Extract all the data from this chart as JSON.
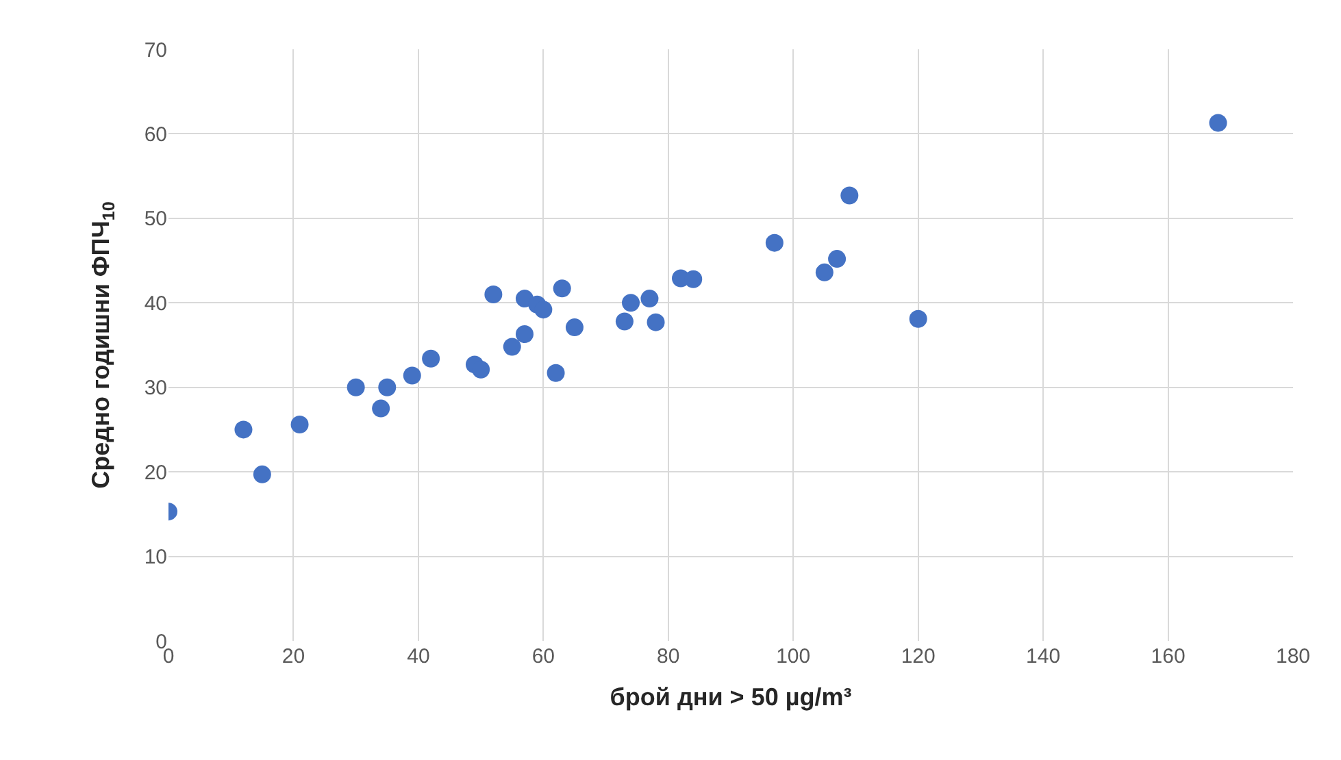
{
  "chart_data": {
    "type": "scatter",
    "xlabel": "брой дни > 50 µg/m³",
    "ylabel": "Средно годишни ФПЧ$_{10}$",
    "x": [
      0,
      12,
      15,
      21,
      30,
      34,
      35,
      39,
      42,
      49,
      50,
      52,
      55,
      57,
      57,
      59,
      60,
      62,
      63,
      65,
      73,
      74,
      77,
      78,
      82,
      84,
      97,
      105,
      107,
      109,
      120,
      168
    ],
    "series": [
      {
        "color": "#4472c4",
        "values": [
          15.3,
          25,
          19.7,
          25.6,
          30,
          27.5,
          30,
          31.4,
          33.4,
          32.7,
          32.1,
          41,
          34.8,
          36.3,
          40.5,
          39.8,
          39.2,
          31.7,
          41.7,
          37.1,
          37.8,
          40,
          40.5,
          37.7,
          42.9,
          42.8,
          47.1,
          43.6,
          45.2,
          52.7,
          38.1,
          61.3
        ]
      }
    ],
    "xlim": [
      0,
      180
    ],
    "xticks": [
      0,
      20,
      40,
      60,
      80,
      100,
      120,
      140,
      160,
      180
    ],
    "ylim": [
      0,
      70
    ],
    "yticks": [
      0,
      10,
      20,
      30,
      40,
      50,
      60,
      70
    ],
    "grid": true,
    "marker": "circle",
    "legend": false
  }
}
